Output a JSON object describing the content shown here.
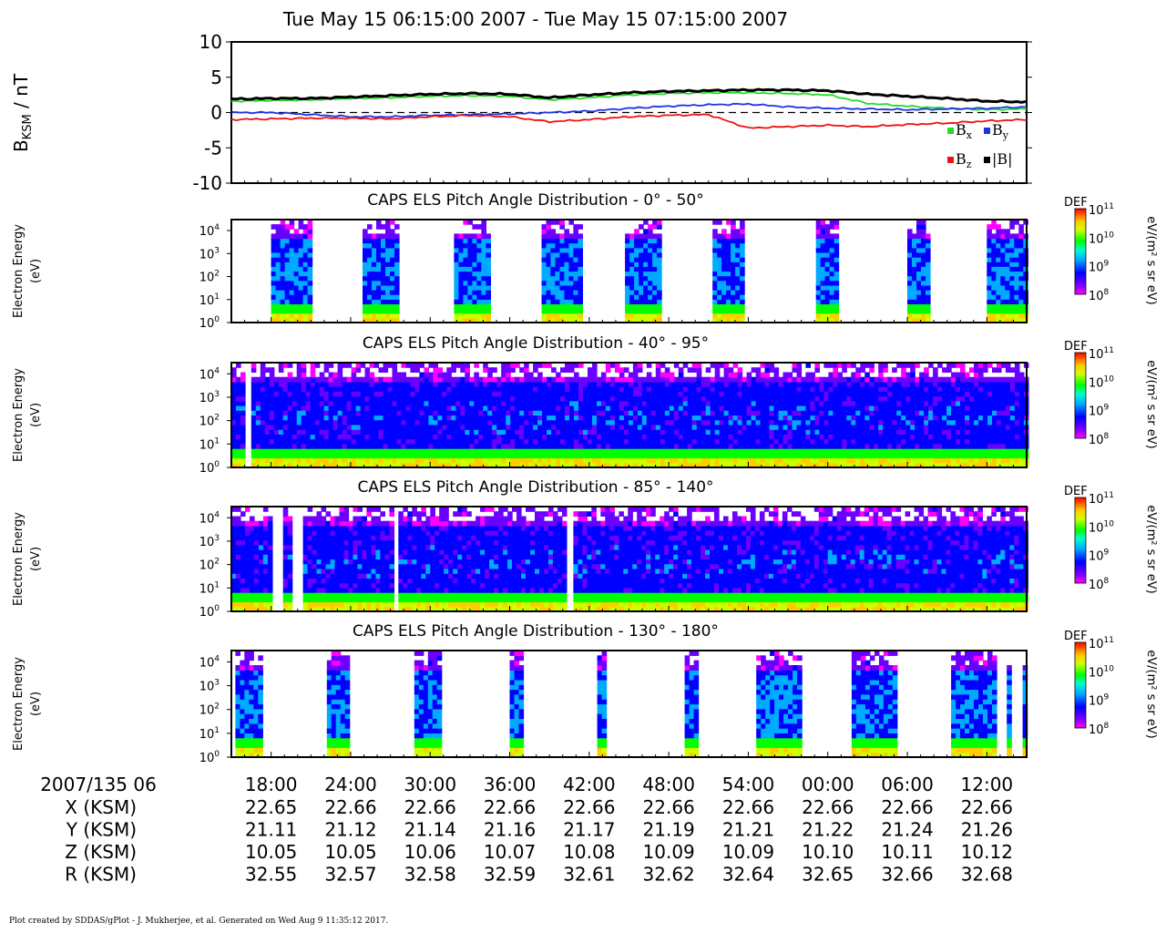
{
  "title": "Tue May 15 06:15:00 2007 - Tue May 15 07:15:00 2007",
  "footer": "Plot created by SDDAS/gPlot - J. Mukherjee, et al.  Generated on Wed Aug 9 11:35:12 2017.",
  "colors": {
    "bx": "#22dd22",
    "by": "#1a33e6",
    "bz": "#ee1111",
    "btotal": "#000000"
  },
  "chart_data": [
    {
      "type": "line",
      "ylabel_main": "B",
      "ylabel_sub": "KSM",
      "ylabel_unit": " / nT",
      "ylim": [
        -10,
        10
      ],
      "yticks": [
        "10",
        "5",
        "0",
        "-5",
        "-10"
      ],
      "ytick_values": [
        10,
        5,
        0,
        -5,
        -10
      ],
      "zero_line": "dashed",
      "legend_placement": "bottom-right",
      "x": [
        0,
        3,
        6,
        9,
        12,
        15,
        18,
        21,
        24,
        27,
        30,
        33,
        36,
        39,
        42,
        45,
        48,
        51,
        54,
        57,
        60
      ],
      "series": [
        {
          "name": "B",
          "sub": "x",
          "color": "#22dd22",
          "values": [
            1.6,
            1.7,
            1.8,
            2.0,
            2.1,
            2.3,
            2.4,
            2.3,
            1.8,
            2.1,
            2.5,
            2.7,
            2.8,
            2.8,
            2.7,
            2.5,
            1.3,
            0.9,
            0.6,
            0.4,
            0.5
          ]
        },
        {
          "name": "B",
          "sub": "y",
          "color": "#1a33e6",
          "values": [
            0.0,
            0.0,
            -0.3,
            -0.6,
            -0.6,
            -0.4,
            -0.3,
            -0.2,
            0.0,
            0.2,
            0.6,
            0.9,
            1.1,
            1.2,
            0.8,
            0.6,
            0.5,
            0.4,
            0.5,
            0.6,
            0.8
          ]
        },
        {
          "name": "B",
          "sub": "z",
          "color": "#ee1111",
          "values": [
            -1.0,
            -0.9,
            -0.8,
            -0.8,
            -0.9,
            -0.6,
            -0.4,
            -0.6,
            -1.3,
            -1.0,
            -0.6,
            -0.4,
            -0.3,
            -2.2,
            -2.0,
            -1.8,
            -2.0,
            -1.7,
            -1.5,
            -1.2,
            -1.0
          ]
        },
        {
          "name": "|B|",
          "sub": "",
          "color": "#000000",
          "values": [
            1.9,
            2.0,
            2.0,
            2.2,
            2.4,
            2.6,
            2.7,
            2.6,
            2.1,
            2.5,
            2.8,
            3.0,
            3.1,
            3.2,
            3.2,
            3.1,
            2.6,
            2.3,
            2.0,
            1.6,
            1.5
          ]
        }
      ]
    },
    {
      "type": "heatmap",
      "title": "CAPS ELS Pitch Angle Distribution - 0° - 50°",
      "ylabel": "Electron Energy",
      "yunit": "(eV)",
      "ylog": true,
      "ylim": [
        1,
        30000
      ],
      "yticks": [
        "10",
        "10",
        "10",
        "10",
        "10"
      ],
      "ytick_exps": [
        "4",
        "3",
        "2",
        "1",
        "0"
      ],
      "ytick_values": [
        10000,
        1000,
        100,
        10,
        1
      ],
      "colorbar": {
        "label": "DEF",
        "unit": "eV/(m² s sr eV)",
        "ticks": [
          "10",
          "10",
          "10",
          "10"
        ],
        "tick_exps": [
          "11",
          "10",
          "9",
          "8"
        ],
        "tick_values": [
          100000000000.0,
          10000000000.0,
          1000000000.0,
          100000000.0
        ]
      },
      "data_intervals_min": [
        [
          5.0,
          10.0
        ],
        [
          16.5,
          21.0
        ],
        [
          28.0,
          32.5
        ],
        [
          39.0,
          44.0
        ],
        [
          49.5,
          54.0
        ],
        [
          60.5,
          64.5
        ],
        [
          73.5,
          76.0
        ],
        [
          85.0,
          87.5
        ],
        [
          95.0,
          100.0
        ]
      ]
    },
    {
      "type": "heatmap",
      "title": "CAPS ELS Pitch Angle Distribution - 40° - 95°",
      "ylabel": "Electron Energy",
      "yunit": "(eV)",
      "ylog": true,
      "ylim": [
        1,
        30000
      ],
      "yticks": [
        "10",
        "10",
        "10",
        "10",
        "10"
      ],
      "ytick_exps": [
        "4",
        "3",
        "2",
        "1",
        "0"
      ],
      "ytick_values": [
        10000,
        1000,
        100,
        10,
        1
      ],
      "colorbar": {
        "label": "DEF",
        "unit": "eV/(m² s sr eV)",
        "ticks": [
          "10",
          "10",
          "10",
          "10"
        ],
        "tick_exps": [
          "11",
          "10",
          "9",
          "8"
        ],
        "tick_values": [
          100000000000.0,
          10000000000.0,
          1000000000.0,
          100000000.0
        ]
      },
      "data_intervals_min": [
        [
          0.0,
          1.5
        ],
        [
          2.5,
          100.0
        ]
      ]
    },
    {
      "type": "heatmap",
      "title": "CAPS ELS Pitch Angle Distribution - 85° - 140°",
      "ylabel": "Electron Energy",
      "yunit": "(eV)",
      "ylog": true,
      "ylim": [
        1,
        30000
      ],
      "yticks": [
        "10",
        "10",
        "10",
        "10",
        "10"
      ],
      "ytick_exps": [
        "4",
        "3",
        "2",
        "1",
        "0"
      ],
      "ytick_values": [
        10000,
        1000,
        100,
        10,
        1
      ],
      "colorbar": {
        "label": "DEF",
        "unit": "eV/(m² s sr eV)",
        "ticks": [
          "10",
          "10",
          "10",
          "10"
        ],
        "tick_exps": [
          "11",
          "10",
          "9",
          "8"
        ],
        "tick_values": [
          100000000000.0,
          10000000000.0,
          1000000000.0,
          100000000.0
        ]
      },
      "data_intervals_min": [
        [
          0.0,
          5.0
        ],
        [
          6.5,
          7.5
        ],
        [
          9.0,
          20.0
        ],
        [
          21.0,
          42.0
        ],
        [
          43.0,
          100.0
        ]
      ]
    },
    {
      "type": "heatmap",
      "title": "CAPS ELS Pitch Angle Distribution - 130° - 180°",
      "ylabel": "Electron Energy",
      "yunit": "(eV)",
      "ylog": true,
      "ylim": [
        1,
        30000
      ],
      "yticks": [
        "10",
        "10",
        "10",
        "10",
        "10"
      ],
      "ytick_exps": [
        "4",
        "3",
        "2",
        "1",
        "0"
      ],
      "ytick_values": [
        10000,
        1000,
        100,
        10,
        1
      ],
      "colorbar": {
        "label": "DEF",
        "unit": "eV/(m² s sr eV)",
        "ticks": [
          "10",
          "10",
          "10",
          "10"
        ],
        "tick_exps": [
          "11",
          "10",
          "9",
          "8"
        ],
        "tick_values": [
          100000000000.0,
          10000000000.0,
          1000000000.0,
          100000000.0
        ]
      },
      "data_intervals_min": [
        [
          0.5,
          3.5
        ],
        [
          12.0,
          14.5
        ],
        [
          23.0,
          26.0
        ],
        [
          35.0,
          36.5
        ],
        [
          46.0,
          47.0
        ],
        [
          57.0,
          58.5
        ],
        [
          66.0,
          71.5
        ],
        [
          78.0,
          83.5
        ],
        [
          90.5,
          96.0
        ],
        [
          97.5,
          98.0
        ],
        [
          99.5,
          100.0
        ]
      ]
    }
  ],
  "time_axis": {
    "start_label": "2007/135 06",
    "minutes": [
      18,
      24,
      30,
      36,
      42,
      48,
      54,
      60,
      66,
      72
    ],
    "tick_labels": [
      "18:00",
      "24:00",
      "30:00",
      "36:00",
      "42:00",
      "48:00",
      "54:00",
      "00:00",
      "06:00",
      "12:00"
    ],
    "range_min": [
      15,
      75
    ]
  },
  "ephemeris": [
    {
      "label": "X (KSM)",
      "values": [
        "22.65",
        "22.66",
        "22.66",
        "22.66",
        "22.66",
        "22.66",
        "22.66",
        "22.66",
        "22.66",
        "22.66"
      ]
    },
    {
      "label": "Y (KSM)",
      "values": [
        "21.11",
        "21.12",
        "21.14",
        "21.16",
        "21.17",
        "21.19",
        "21.21",
        "21.22",
        "21.24",
        "21.26"
      ]
    },
    {
      "label": "Z (KSM)",
      "values": [
        "10.05",
        "10.05",
        "10.06",
        "10.07",
        "10.08",
        "10.09",
        "10.09",
        "10.10",
        "10.11",
        "10.12"
      ]
    },
    {
      "label": "R (KSM)",
      "values": [
        "32.55",
        "32.57",
        "32.58",
        "32.59",
        "32.61",
        "32.62",
        "32.64",
        "32.65",
        "32.66",
        "32.68"
      ]
    }
  ]
}
